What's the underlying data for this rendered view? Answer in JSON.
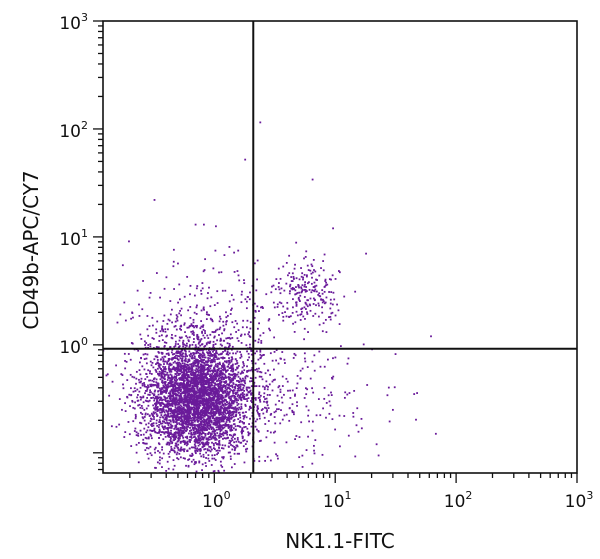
{
  "chart_data": {
    "type": "scatter",
    "xlabel": "NK1.1-FITC",
    "ylabel": "CD49b-APC/CY7",
    "x_scale": "log",
    "y_scale": "log",
    "xlim": [
      0.12,
      1000
    ],
    "ylim": [
      0.065,
      1000
    ],
    "grid": false,
    "x_ticks": [
      {
        "base": "10",
        "exp": "0",
        "value": 1
      },
      {
        "base": "10",
        "exp": "1",
        "value": 10
      },
      {
        "base": "10",
        "exp": "2",
        "value": 100
      },
      {
        "base": "10",
        "exp": "3",
        "value": 1000
      }
    ],
    "y_ticks": [
      {
        "base": "10",
        "exp": "0",
        "value": 1
      },
      {
        "base": "10",
        "exp": "1",
        "value": 10
      },
      {
        "base": "10",
        "exp": "2",
        "value": 100
      },
      {
        "base": "10",
        "exp": "3",
        "value": 1000
      }
    ],
    "quadrant_gates": {
      "x": 2.1,
      "y": 0.92
    },
    "point_color": "#6a1b9a",
    "populations": [
      {
        "center_x": 0.72,
        "center_y": 0.32,
        "spread_x_decades": 0.22,
        "spread_y_decades": 0.26,
        "count": 4200
      },
      {
        "center_x": 5.8,
        "center_y": 3.0,
        "spread_x_decades": 0.13,
        "spread_y_decades": 0.15,
        "count": 220
      },
      {
        "center_x": 2.5,
        "center_y": 0.33,
        "spread_x_decades": 0.45,
        "spread_y_decades": 0.3,
        "count": 380
      },
      {
        "center_x": 0.9,
        "center_y": 1.6,
        "spread_x_decades": 0.35,
        "spread_y_decades": 0.3,
        "count": 300
      }
    ],
    "outliers": [
      {
        "x": 2.4,
        "y": 115
      },
      {
        "x": 1.8,
        "y": 52
      },
      {
        "x": 6.5,
        "y": 34
      },
      {
        "x": 0.32,
        "y": 22
      },
      {
        "x": 0.82,
        "y": 13
      },
      {
        "x": 0.7,
        "y": 13
      },
      {
        "x": 9.6,
        "y": 12
      },
      {
        "x": 18,
        "y": 7
      },
      {
        "x": 62,
        "y": 1.2
      },
      {
        "x": 45,
        "y": 0.35
      },
      {
        "x": 68,
        "y": 0.15
      },
      {
        "x": 30,
        "y": 0.25
      },
      {
        "x": 15,
        "y": 0.18
      },
      {
        "x": 22,
        "y": 0.12
      },
      {
        "x": 0.18,
        "y": 0.14
      }
    ]
  }
}
